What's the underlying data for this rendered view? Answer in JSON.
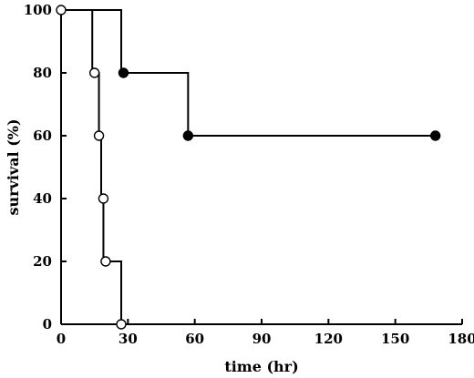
{
  "chart_data": {
    "type": "line",
    "step": "post",
    "title": "",
    "xlabel": "time (hr)",
    "ylabel": "survival (%)",
    "xlim": [
      0,
      180
    ],
    "ylim": [
      0,
      100
    ],
    "xticks": [
      0,
      30,
      60,
      90,
      120,
      150,
      180
    ],
    "yticks": [
      0,
      20,
      40,
      60,
      80,
      100
    ],
    "grid": false,
    "series": [
      {
        "marker": "open-circle",
        "color": "#000000",
        "points": [
          {
            "x": 0,
            "y": 100
          },
          {
            "x": 15,
            "y": 80
          },
          {
            "x": 17,
            "y": 60
          },
          {
            "x": 19,
            "y": 40
          },
          {
            "x": 20,
            "y": 20
          },
          {
            "x": 27,
            "y": 0
          }
        ],
        "steps": [
          {
            "x": 14,
            "y": 80
          },
          {
            "x": 17,
            "y": 60
          },
          {
            "x": 18,
            "y": 40
          },
          {
            "x": 19,
            "y": 20
          },
          {
            "x": 27,
            "y": 0
          }
        ]
      },
      {
        "marker": "filled-circle",
        "color": "#000000",
        "points": [
          {
            "x": 28,
            "y": 80
          },
          {
            "x": 57,
            "y": 60
          },
          {
            "x": 168,
            "y": 60
          }
        ],
        "steps": [
          {
            "x": 0,
            "y": 100
          },
          {
            "x": 27,
            "y": 80
          },
          {
            "x": 57,
            "y": 60
          },
          {
            "x": 168,
            "y": 60
          }
        ]
      }
    ]
  }
}
